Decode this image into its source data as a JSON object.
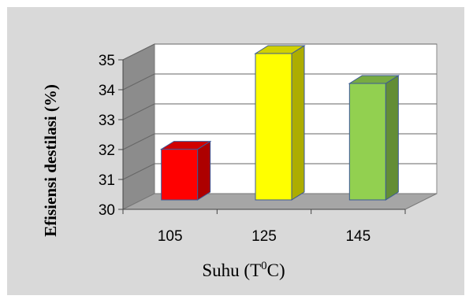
{
  "chart_data": {
    "type": "bar",
    "categories": [
      "105",
      "125",
      "145"
    ],
    "values": [
      31.8,
      35.0,
      34.0
    ],
    "colors": [
      "#ff0000",
      "#ffff00",
      "#92d050"
    ],
    "ylabel": "Efisiensi destilasi (%)",
    "xlabel": "Suhu (T",
    "xlabel_sup": "0",
    "xlabel_suffix": "C)",
    "ylim": [
      30,
      35
    ],
    "yticks": [
      30,
      31,
      32,
      33,
      34,
      35
    ],
    "grid": true,
    "style": "3d-column"
  }
}
